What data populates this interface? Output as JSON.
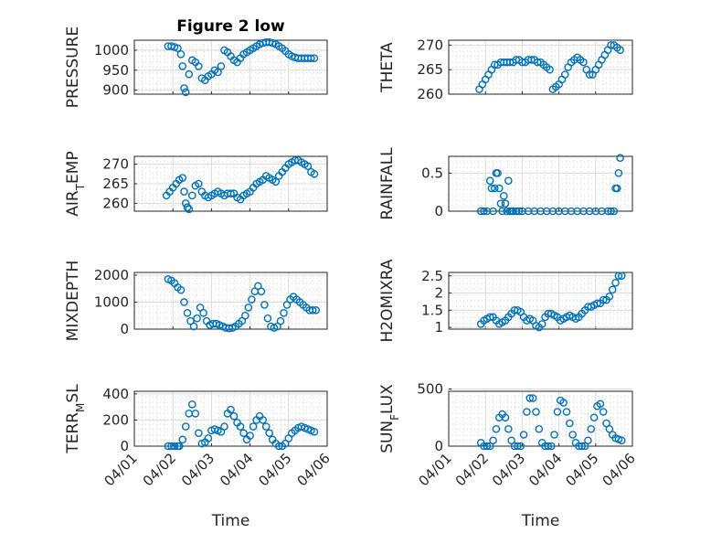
{
  "chart_data": [
    {
      "id": "pressure",
      "type": "scatter",
      "title": "Figure 2 low",
      "ylabel": "PRESSURE",
      "xlabel": "",
      "xlim": [
        "04/01",
        "04/06"
      ],
      "ylim": [
        890,
        1025
      ],
      "yticks": [
        900,
        950,
        1000
      ],
      "ytick_labels": [
        "900",
        "950",
        "1000"
      ],
      "xticks": [
        "04/01",
        "04/02",
        "04/03",
        "04/04",
        "04/05",
        "04/06"
      ],
      "show_xtick_labels": false,
      "grid": true,
      "minor_grid": true,
      "marker": "circle",
      "color": "#0072BD",
      "x": [
        "04/01 21:00",
        "04/01 23:00",
        "04/02 01:00",
        "04/02 03:00",
        "04/02 05:00",
        "04/02 06:00",
        "04/02 07:00",
        "04/02 08:00",
        "04/02 10:00",
        "04/02 12:00",
        "04/02 14:00",
        "04/02 16:00",
        "04/02 18:00",
        "04/02 20:00",
        "04/02 22:00",
        "04/03 00:00",
        "04/03 02:00",
        "04/03 04:00",
        "04/03 06:00",
        "04/03 08:00",
        "04/03 10:00",
        "04/03 12:00",
        "04/03 14:00",
        "04/03 16:00",
        "04/03 18:00",
        "04/03 20:00",
        "04/03 22:00",
        "04/04 00:00",
        "04/04 02:00",
        "04/04 04:00",
        "04/04 06:00",
        "04/04 08:00",
        "04/04 10:00",
        "04/04 12:00",
        "04/04 14:00",
        "04/04 16:00",
        "04/04 18:00",
        "04/04 20:00",
        "04/04 22:00",
        "04/05 00:00",
        "04/05 02:00",
        "04/05 04:00",
        "04/05 06:00",
        "04/05 08:00",
        "04/05 10:00",
        "04/05 12:00",
        "04/05 14:00",
        "04/05 16:00"
      ],
      "y": [
        1010,
        1010,
        1008,
        1005,
        990,
        960,
        905,
        895,
        940,
        975,
        970,
        960,
        930,
        925,
        935,
        940,
        950,
        945,
        960,
        1000,
        995,
        985,
        975,
        970,
        980,
        990,
        995,
        1000,
        1005,
        1010,
        1015,
        1018,
        1020,
        1020,
        1018,
        1015,
        1010,
        1005,
        998,
        990,
        985,
        982,
        980,
        980,
        980,
        980,
        980,
        980
      ]
    },
    {
      "id": "theta",
      "type": "scatter",
      "title": "",
      "ylabel": "THETA",
      "xlabel": "",
      "xlim": [
        "04/01",
        "04/06"
      ],
      "ylim": [
        260,
        271
      ],
      "yticks": [
        260,
        265,
        270
      ],
      "ytick_labels": [
        "260",
        "265",
        "270"
      ],
      "xticks": [
        "04/01",
        "04/02",
        "04/03",
        "04/04",
        "04/05",
        "04/06"
      ],
      "show_xtick_labels": false,
      "grid": true,
      "minor_grid": true,
      "marker": "circle",
      "color": "#0072BD",
      "x": [
        "04/01 20:00",
        "04/01 22:00",
        "04/02 00:00",
        "04/02 02:00",
        "04/02 04:00",
        "04/02 06:00",
        "04/02 08:00",
        "04/02 10:00",
        "04/02 12:00",
        "04/02 14:00",
        "04/02 16:00",
        "04/02 18:00",
        "04/02 20:00",
        "04/02 22:00",
        "04/03 00:00",
        "04/03 02:00",
        "04/03 04:00",
        "04/03 06:00",
        "04/03 08:00",
        "04/03 10:00",
        "04/03 12:00",
        "04/03 14:00",
        "04/03 16:00",
        "04/03 18:00",
        "04/03 20:00",
        "04/03 22:00",
        "04/04 00:00",
        "04/04 02:00",
        "04/04 04:00",
        "04/04 06:00",
        "04/04 08:00",
        "04/04 10:00",
        "04/04 12:00",
        "04/04 14:00",
        "04/04 16:00",
        "04/04 18:00",
        "04/04 20:00",
        "04/04 22:00",
        "04/05 00:00",
        "04/05 02:00",
        "04/05 04:00",
        "04/05 06:00",
        "04/05 08:00",
        "04/05 10:00",
        "04/05 12:00",
        "04/05 14:00",
        "04/05 16:00"
      ],
      "y": [
        261,
        262,
        263,
        264,
        265,
        266,
        266,
        266.5,
        266.5,
        266.5,
        266.5,
        266.5,
        267,
        267,
        266.5,
        266.5,
        267,
        267,
        267,
        266.5,
        266.5,
        266,
        265.5,
        265,
        261,
        261.5,
        262,
        263,
        264,
        265.5,
        266.5,
        267,
        267.5,
        267,
        266.5,
        265,
        264,
        264,
        265,
        266,
        267,
        268,
        269,
        270,
        270,
        269.5,
        269
      ]
    },
    {
      "id": "air-temp",
      "type": "scatter",
      "title": "",
      "ylabel": "AIR_TEMP",
      "xlabel": "",
      "xlim": [
        "04/01",
        "04/06"
      ],
      "ylim": [
        258,
        272
      ],
      "yticks": [
        260,
        265,
        270
      ],
      "ytick_labels": [
        "260",
        "265",
        "270"
      ],
      "xticks": [
        "04/01",
        "04/02",
        "04/03",
        "04/04",
        "04/05",
        "04/06"
      ],
      "show_xtick_labels": false,
      "grid": true,
      "minor_grid": true,
      "marker": "circle",
      "color": "#0072BD",
      "x": [
        "04/01 20:00",
        "04/01 22:00",
        "04/02 00:00",
        "04/02 02:00",
        "04/02 04:00",
        "04/02 06:00",
        "04/02 07:00",
        "04/02 08:00",
        "04/02 09:00",
        "04/02 10:00",
        "04/02 12:00",
        "04/02 14:00",
        "04/02 16:00",
        "04/02 18:00",
        "04/02 20:00",
        "04/02 22:00",
        "04/03 00:00",
        "04/03 02:00",
        "04/03 04:00",
        "04/03 06:00",
        "04/03 08:00",
        "04/03 10:00",
        "04/03 12:00",
        "04/03 14:00",
        "04/03 16:00",
        "04/03 18:00",
        "04/03 20:00",
        "04/03 22:00",
        "04/04 00:00",
        "04/04 02:00",
        "04/04 04:00",
        "04/04 06:00",
        "04/04 08:00",
        "04/04 10:00",
        "04/04 12:00",
        "04/04 14:00",
        "04/04 16:00",
        "04/04 18:00",
        "04/04 20:00",
        "04/04 22:00",
        "04/05 00:00",
        "04/05 02:00",
        "04/05 04:00",
        "04/05 06:00",
        "04/05 08:00",
        "04/05 10:00",
        "04/05 12:00",
        "04/05 14:00",
        "04/05 16:00"
      ],
      "y": [
        262,
        263,
        264,
        265,
        266,
        266.5,
        263,
        260,
        259,
        258.5,
        262,
        264.5,
        265,
        263,
        262,
        261.5,
        262,
        262.5,
        263,
        262.5,
        262,
        262.5,
        262.5,
        262.5,
        261.5,
        261,
        262,
        262.5,
        263,
        264,
        265,
        265.5,
        266,
        267,
        266.5,
        266,
        265.5,
        267,
        268,
        269,
        270,
        270.5,
        271,
        271,
        270.5,
        270,
        269.5,
        268,
        267.5
      ]
    },
    {
      "id": "rainfall",
      "type": "scatter",
      "title": "",
      "ylabel": "RAINFALL",
      "xlabel": "",
      "xlim": [
        "04/01",
        "04/06"
      ],
      "ylim": [
        0,
        0.72
      ],
      "yticks": [
        0,
        0.5
      ],
      "ytick_labels": [
        "0",
        "0.5"
      ],
      "xticks": [
        "04/01",
        "04/02",
        "04/03",
        "04/04",
        "04/05",
        "04/06"
      ],
      "show_xtick_labels": false,
      "grid": true,
      "minor_grid": true,
      "marker": "circle",
      "color": "#0072BD",
      "x": [
        "04/01 21:00",
        "04/01 23:00",
        "04/02 01:00",
        "04/02 03:00",
        "04/02 04:00",
        "04/02 05:00",
        "04/02 06:00",
        "04/02 07:00",
        "04/02 08:00",
        "04/02 09:00",
        "04/02 10:00",
        "04/02 11:00",
        "04/02 12:00",
        "04/02 13:00",
        "04/02 14:00",
        "04/02 15:00",
        "04/02 16:00",
        "04/02 17:00",
        "04/02 18:00",
        "04/02 20:00",
        "04/02 22:00",
        "04/03 00:00",
        "04/03 04:00",
        "04/03 08:00",
        "04/03 12:00",
        "04/03 16:00",
        "04/03 20:00",
        "04/04 00:00",
        "04/04 04:00",
        "04/04 08:00",
        "04/04 12:00",
        "04/04 16:00",
        "04/04 20:00",
        "04/05 00:00",
        "04/05 04:00",
        "04/05 08:00",
        "04/05 10:00",
        "04/05 12:00",
        "04/05 13:00",
        "04/05 14:00",
        "04/05 15:00",
        "04/05 16:00"
      ],
      "y": [
        0,
        0,
        0,
        0.4,
        0.3,
        0,
        0.3,
        0.5,
        0.5,
        0.3,
        0.1,
        0,
        0.2,
        0.1,
        0,
        0.4,
        0,
        0,
        0,
        0,
        0,
        0,
        0,
        0,
        0,
        0,
        0,
        0,
        0,
        0,
        0,
        0,
        0,
        0,
        0,
        0,
        0,
        0,
        0.3,
        0.3,
        0.5,
        0.7
      ]
    },
    {
      "id": "mixdepth",
      "type": "scatter",
      "title": "",
      "ylabel": "MIXDEPTH",
      "xlabel": "",
      "xlim": [
        "04/01",
        "04/06"
      ],
      "ylim": [
        0,
        2100
      ],
      "yticks": [
        0,
        1000,
        2000
      ],
      "ytick_labels": [
        "0",
        "1000",
        "2000"
      ],
      "xticks": [
        "04/01",
        "04/02",
        "04/03",
        "04/04",
        "04/05",
        "04/06"
      ],
      "show_xtick_labels": false,
      "grid": true,
      "minor_grid": true,
      "marker": "circle",
      "color": "#0072BD",
      "x": [
        "04/01 21:00",
        "04/01 23:00",
        "04/02 01:00",
        "04/02 03:00",
        "04/02 05:00",
        "04/02 07:00",
        "04/02 09:00",
        "04/02 11:00",
        "04/02 13:00",
        "04/02 15:00",
        "04/02 17:00",
        "04/02 19:00",
        "04/02 21:00",
        "04/02 23:00",
        "04/03 01:00",
        "04/03 03:00",
        "04/03 05:00",
        "04/03 07:00",
        "04/03 09:00",
        "04/03 11:00",
        "04/03 13:00",
        "04/03 15:00",
        "04/03 17:00",
        "04/03 19:00",
        "04/03 21:00",
        "04/03 23:00",
        "04/04 01:00",
        "04/04 03:00",
        "04/04 05:00",
        "04/04 07:00",
        "04/04 09:00",
        "04/04 11:00",
        "04/04 13:00",
        "04/04 15:00",
        "04/04 17:00",
        "04/04 19:00",
        "04/04 21:00",
        "04/04 23:00",
        "04/05 01:00",
        "04/05 03:00",
        "04/05 05:00",
        "04/05 07:00",
        "04/05 09:00",
        "04/05 11:00",
        "04/05 13:00",
        "04/05 15:00",
        "04/05 17:00"
      ],
      "y": [
        1850,
        1800,
        1700,
        1550,
        1450,
        1000,
        600,
        300,
        100,
        400,
        800,
        600,
        300,
        150,
        200,
        200,
        150,
        100,
        50,
        30,
        50,
        100,
        200,
        300,
        500,
        800,
        1100,
        1400,
        1600,
        1400,
        900,
        400,
        100,
        50,
        100,
        300,
        600,
        900,
        1100,
        1200,
        1100,
        1000,
        900,
        800,
        700,
        700,
        700
      ]
    },
    {
      "id": "h2omixra",
      "type": "scatter",
      "title": "",
      "ylabel": "H2OMIXRA",
      "xlabel": "",
      "xlim": [
        "04/01",
        "04/06"
      ],
      "ylim": [
        0.95,
        2.6
      ],
      "yticks": [
        1,
        1.5,
        2,
        2.5
      ],
      "ytick_labels": [
        "1",
        "1.5",
        "2",
        "2.5"
      ],
      "xticks": [
        "04/01",
        "04/02",
        "04/03",
        "04/04",
        "04/05",
        "04/06"
      ],
      "show_xtick_labels": false,
      "grid": true,
      "minor_grid": true,
      "marker": "circle",
      "color": "#0072BD",
      "x": [
        "04/01 21:00",
        "04/01 23:00",
        "04/02 01:00",
        "04/02 03:00",
        "04/02 05:00",
        "04/02 07:00",
        "04/02 09:00",
        "04/02 11:00",
        "04/02 13:00",
        "04/02 15:00",
        "04/02 17:00",
        "04/02 19:00",
        "04/02 21:00",
        "04/02 23:00",
        "04/03 01:00",
        "04/03 03:00",
        "04/03 05:00",
        "04/03 07:00",
        "04/03 09:00",
        "04/03 11:00",
        "04/03 13:00",
        "04/03 15:00",
        "04/03 17:00",
        "04/03 19:00",
        "04/03 21:00",
        "04/03 23:00",
        "04/04 01:00",
        "04/04 03:00",
        "04/04 05:00",
        "04/04 07:00",
        "04/04 09:00",
        "04/04 11:00",
        "04/04 13:00",
        "04/04 15:00",
        "04/04 17:00",
        "04/04 19:00",
        "04/04 21:00",
        "04/04 23:00",
        "04/05 01:00",
        "04/05 03:00",
        "04/05 05:00",
        "04/05 07:00",
        "04/05 09:00",
        "04/05 11:00",
        "04/05 13:00",
        "04/05 15:00",
        "04/05 17:00"
      ],
      "y": [
        1.1,
        1.2,
        1.25,
        1.3,
        1.3,
        1.2,
        1.1,
        1.15,
        1.2,
        1.3,
        1.4,
        1.5,
        1.5,
        1.45,
        1.3,
        1.2,
        1.25,
        1.2,
        1.05,
        1.0,
        1.1,
        1.3,
        1.4,
        1.4,
        1.35,
        1.3,
        1.2,
        1.25,
        1.3,
        1.35,
        1.3,
        1.25,
        1.3,
        1.4,
        1.5,
        1.6,
        1.6,
        1.65,
        1.7,
        1.7,
        1.8,
        1.8,
        1.9,
        2.1,
        2.3,
        2.5,
        2.5
      ]
    },
    {
      "id": "terr-msl",
      "type": "scatter",
      "title": "",
      "ylabel": "TERR_MSL",
      "xlabel": "Time",
      "xlim": [
        "04/01",
        "04/06"
      ],
      "ylim": [
        0,
        420
      ],
      "yticks": [
        0,
        200,
        400
      ],
      "ytick_labels": [
        "0",
        "200",
        "400"
      ],
      "xticks": [
        "04/01",
        "04/02",
        "04/03",
        "04/04",
        "04/05",
        "04/06"
      ],
      "show_xtick_labels": true,
      "grid": true,
      "minor_grid": true,
      "marker": "circle",
      "color": "#0072BD",
      "x": [
        "04/01 21:00",
        "04/01 23:00",
        "04/02 01:00",
        "04/02 03:00",
        "04/02 04:00",
        "04/02 06:00",
        "04/02 08:00",
        "04/02 10:00",
        "04/02 12:00",
        "04/02 14:00",
        "04/02 16:00",
        "04/02 18:00",
        "04/02 20:00",
        "04/02 22:00",
        "04/03 00:00",
        "04/03 02:00",
        "04/03 04:00",
        "04/03 06:00",
        "04/03 08:00",
        "04/03 10:00",
        "04/03 12:00",
        "04/03 14:00",
        "04/03 16:00",
        "04/03 18:00",
        "04/03 20:00",
        "04/03 22:00",
        "04/04 00:00",
        "04/04 02:00",
        "04/04 04:00",
        "04/04 06:00",
        "04/04 08:00",
        "04/04 10:00",
        "04/04 12:00",
        "04/04 14:00",
        "04/04 16:00",
        "04/04 18:00",
        "04/04 20:00",
        "04/04 22:00",
        "04/05 00:00",
        "04/05 02:00",
        "04/05 04:00",
        "04/05 06:00",
        "04/05 08:00",
        "04/05 10:00",
        "04/05 12:00",
        "04/05 14:00",
        "04/05 16:00"
      ],
      "y": [
        0,
        0,
        0,
        0,
        0,
        50,
        150,
        250,
        320,
        250,
        100,
        20,
        30,
        60,
        120,
        130,
        120,
        110,
        150,
        250,
        280,
        230,
        180,
        150,
        100,
        50,
        80,
        150,
        200,
        230,
        200,
        150,
        100,
        50,
        20,
        0,
        0,
        20,
        60,
        100,
        120,
        140,
        150,
        140,
        130,
        120,
        110
      ]
    },
    {
      "id": "sun-flux",
      "type": "scatter",
      "title": "",
      "ylabel": "SUN_FLUX",
      "xlabel": "Time",
      "xlim": [
        "04/01",
        "04/06"
      ],
      "ylim": [
        0,
        480
      ],
      "yticks": [
        0,
        500
      ],
      "ytick_labels": [
        "0",
        "500"
      ],
      "xticks": [
        "04/01",
        "04/02",
        "04/03",
        "04/04",
        "04/05",
        "04/06"
      ],
      "show_xtick_labels": true,
      "grid": true,
      "minor_grid": true,
      "marker": "circle",
      "color": "#0072BD",
      "x": [
        "04/01 21:00",
        "04/01 23:00",
        "04/02 01:00",
        "04/02 03:00",
        "04/02 05:00",
        "04/02 07:00",
        "04/02 09:00",
        "04/02 11:00",
        "04/02 13:00",
        "04/02 15:00",
        "04/02 17:00",
        "04/02 19:00",
        "04/02 21:00",
        "04/02 23:00",
        "04/03 01:00",
        "04/03 03:00",
        "04/03 05:00",
        "04/03 07:00",
        "04/03 09:00",
        "04/03 11:00",
        "04/03 13:00",
        "04/03 15:00",
        "04/03 17:00",
        "04/03 19:00",
        "04/03 21:00",
        "04/03 23:00",
        "04/04 01:00",
        "04/04 03:00",
        "04/04 05:00",
        "04/04 07:00",
        "04/04 09:00",
        "04/04 11:00",
        "04/04 13:00",
        "04/04 15:00",
        "04/04 17:00",
        "04/04 19:00",
        "04/04 21:00",
        "04/04 23:00",
        "04/05 01:00",
        "04/05 03:00",
        "04/05 05:00",
        "04/05 07:00",
        "04/05 09:00",
        "04/05 11:00",
        "04/05 13:00",
        "04/05 15:00",
        "04/05 17:00"
      ],
      "y": [
        30,
        0,
        0,
        0,
        50,
        150,
        250,
        280,
        250,
        150,
        50,
        0,
        0,
        0,
        100,
        300,
        420,
        420,
        300,
        150,
        30,
        0,
        0,
        0,
        100,
        300,
        400,
        380,
        300,
        200,
        100,
        30,
        0,
        0,
        0,
        50,
        150,
        250,
        350,
        370,
        300,
        200,
        150,
        100,
        70,
        60,
        50
      ]
    }
  ]
}
